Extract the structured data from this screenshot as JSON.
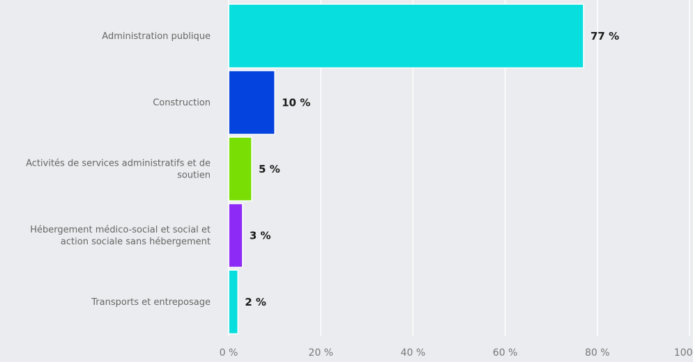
{
  "chart_data": {
    "type": "bar",
    "orientation": "horizontal",
    "categories": [
      "Administration publique",
      "Construction",
      "Activités de services administratifs et de soutien",
      "Hébergement médico-social et social et action sociale sans hébergement",
      "Transports et entreposage"
    ],
    "category_lines": [
      [
        "Administration publique"
      ],
      [
        "Construction"
      ],
      [
        "Activités de services administratifs et de",
        "soutien"
      ],
      [
        "Hébergement médico-social et social et",
        "action sociale sans hébergement"
      ],
      [
        "Transports et entreposage"
      ]
    ],
    "values": [
      77,
      10,
      5,
      3,
      2
    ],
    "value_labels": [
      "77 %",
      "10 %",
      "5 %",
      "3 %",
      "2 %"
    ],
    "colors": [
      "#08dede",
      "#0443de",
      "#78de04",
      "#8d2af5",
      "#08dede"
    ],
    "xlim": [
      0,
      100
    ],
    "xticks": [
      0,
      20,
      40,
      60,
      80,
      100
    ],
    "xtick_labels": [
      "0 %",
      "20 %",
      "40 %",
      "60 %",
      "80 %",
      "100 %"
    ],
    "grid": true,
    "title": "",
    "xlabel": "",
    "ylabel": ""
  }
}
